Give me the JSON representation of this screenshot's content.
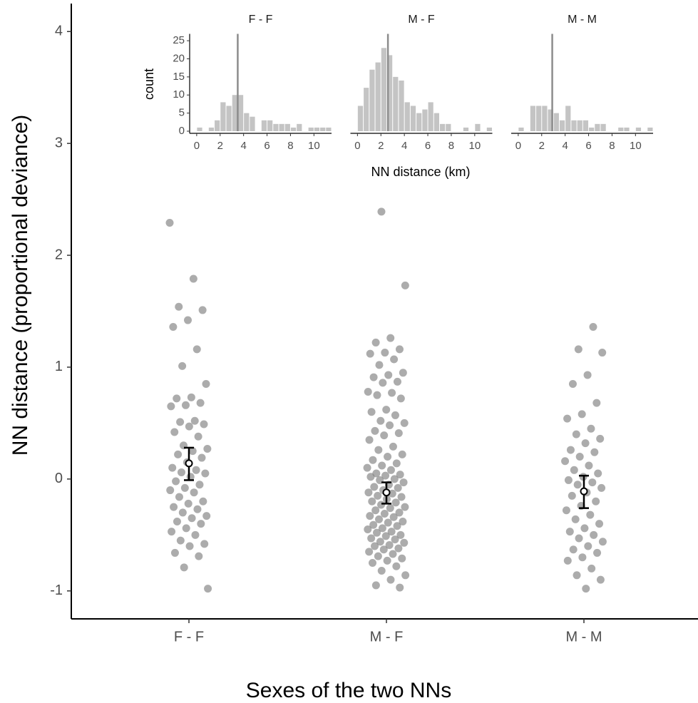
{
  "chart_data": [
    {
      "type": "strip",
      "categories": [
        "F - F",
        "M - F",
        "M - M"
      ],
      "x_label": "Sexes of the two NNs",
      "y_label": "NN distance (proportional deviance)",
      "ylim": [
        -1.25,
        4.25
      ],
      "yticks": [
        -1,
        0,
        1,
        2,
        3,
        4
      ],
      "color": "#808080",
      "values": [
        [
          2.29,
          1.79,
          1.54,
          1.51,
          1.42,
          1.36,
          1.16,
          1.01,
          0.85,
          0.73,
          0.72,
          0.68,
          0.66,
          0.65,
          0.52,
          0.51,
          0.49,
          0.47,
          0.42,
          0.38,
          0.3,
          0.27,
          0.25,
          0.22,
          0.19,
          0.15,
          0.1,
          0.08,
          0.06,
          0.05,
          0.02,
          -0.02,
          -0.05,
          -0.08,
          -0.1,
          -0.12,
          -0.16,
          -0.2,
          -0.22,
          -0.25,
          -0.27,
          -0.3,
          -0.33,
          -0.35,
          -0.38,
          -0.4,
          -0.44,
          -0.47,
          -0.5,
          -0.55,
          -0.58,
          -0.6,
          -0.66,
          -0.69,
          -0.79,
          -0.98
        ],
        [
          2.39,
          1.73,
          1.26,
          1.22,
          1.16,
          1.13,
          1.12,
          1.07,
          1.02,
          0.95,
          0.93,
          0.91,
          0.87,
          0.86,
          0.78,
          0.77,
          0.75,
          0.72,
          0.62,
          0.6,
          0.57,
          0.52,
          0.5,
          0.48,
          0.43,
          0.41,
          0.39,
          0.35,
          0.29,
          0.26,
          0.22,
          0.2,
          0.17,
          0.14,
          0.12,
          0.1,
          0.08,
          0.05,
          0.04,
          0.03,
          0.02,
          0.0,
          -0.01,
          -0.03,
          -0.05,
          -0.07,
          -0.08,
          -0.1,
          -0.12,
          -0.13,
          -0.15,
          -0.16,
          -0.18,
          -0.2,
          -0.21,
          -0.23,
          -0.25,
          -0.26,
          -0.28,
          -0.3,
          -0.31,
          -0.33,
          -0.34,
          -0.36,
          -0.38,
          -0.39,
          -0.41,
          -0.42,
          -0.44,
          -0.45,
          -0.47,
          -0.48,
          -0.5,
          -0.51,
          -0.53,
          -0.54,
          -0.56,
          -0.57,
          -0.59,
          -0.6,
          -0.62,
          -0.63,
          -0.65,
          -0.67,
          -0.69,
          -0.71,
          -0.73,
          -0.75,
          -0.78,
          -0.82,
          -0.86,
          -0.9,
          -0.95,
          -0.97
        ],
        [
          1.36,
          1.16,
          1.13,
          0.93,
          0.85,
          0.68,
          0.58,
          0.54,
          0.45,
          0.4,
          0.36,
          0.32,
          0.26,
          0.24,
          0.2,
          0.16,
          0.12,
          0.08,
          0.05,
          0.02,
          -0.01,
          -0.03,
          -0.05,
          -0.08,
          -0.12,
          -0.15,
          -0.2,
          -0.24,
          -0.28,
          -0.32,
          -0.36,
          -0.4,
          -0.44,
          -0.47,
          -0.5,
          -0.53,
          -0.56,
          -0.6,
          -0.63,
          -0.66,
          -0.7,
          -0.73,
          -0.8,
          -0.86,
          -0.9,
          -0.98
        ]
      ],
      "mean": [
        0.14,
        -0.12,
        -0.11
      ],
      "lower": [
        -0.01,
        -0.22,
        -0.26
      ],
      "upper": [
        0.28,
        -0.03,
        0.03
      ]
    },
    {
      "type": "histogram",
      "x_label": "NN distance (km)",
      "y_label": "count",
      "color": "#c4c4c4",
      "line_color": "#8c8c8c",
      "bins": [
        0,
        0.5,
        1,
        1.5,
        2,
        2.5,
        3,
        3.5,
        4,
        4.5,
        5,
        5.5,
        6,
        6.5,
        7,
        7.5,
        8,
        8.5,
        9,
        9.5,
        10,
        10.5,
        11,
        11.5
      ],
      "xlim": [
        -0.6,
        11.5
      ],
      "ylim": [
        0,
        26.5
      ],
      "xticks": [
        0,
        2,
        4,
        6,
        8,
        10
      ],
      "yticks": [
        0,
        5,
        10,
        15,
        20,
        25
      ],
      "panels": [
        {
          "title": "F - F",
          "median": 3.5,
          "counts": [
            1,
            0,
            1,
            3,
            8,
            7,
            10,
            10,
            5,
            4,
            0,
            3,
            3,
            2,
            2,
            2,
            1,
            2,
            0,
            1,
            1,
            1,
            1
          ]
        },
        {
          "title": "M - F",
          "median": 2.6,
          "counts": [
            7,
            12,
            17,
            19,
            23,
            21,
            15,
            14,
            8,
            7,
            5,
            6,
            8,
            5,
            2,
            2,
            0,
            0,
            1,
            0,
            2,
            0,
            1
          ]
        },
        {
          "title": "M - M",
          "median": 2.9,
          "counts": [
            1,
            0,
            7,
            7,
            7,
            6,
            5,
            3,
            7,
            3,
            3,
            3,
            1,
            2,
            2,
            0,
            0,
            1,
            1,
            0,
            1,
            0,
            1
          ]
        }
      ]
    }
  ]
}
